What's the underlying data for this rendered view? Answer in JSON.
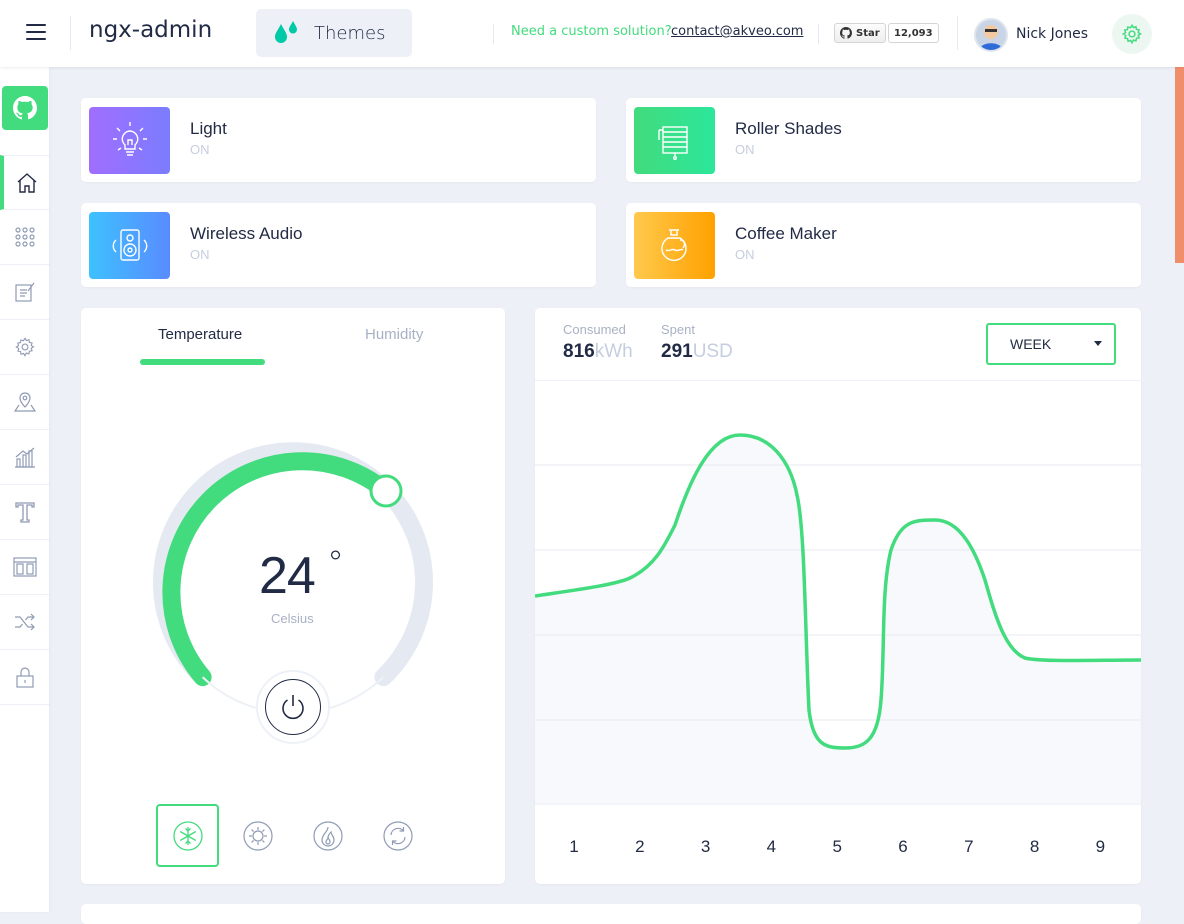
{
  "header": {
    "logo": "ngx-admin",
    "themes_label": "Themes",
    "promo_text": "Need a custom solution?",
    "contact_link": "contact@akveo.com",
    "github_star_label": "Star",
    "github_star_count": "12,093",
    "user_name": "Nick Jones"
  },
  "sidebar": {
    "items": [
      "home-icon",
      "apps-grid-icon",
      "edit-icon",
      "settings-icon",
      "map-icon",
      "bar-chart-icon",
      "text-icon",
      "layout-icon",
      "shuffle-icon",
      "lock-icon"
    ],
    "active": "home-icon"
  },
  "devices": [
    {
      "title": "Light",
      "status": "ON",
      "icon": "lightbulb-icon",
      "gradient": [
        "#a16eff",
        "#7b7cff"
      ]
    },
    {
      "title": "Roller Shades",
      "status": "ON",
      "icon": "roller-shades-icon",
      "gradient": [
        "#42db7d",
        "#2ce69b"
      ]
    },
    {
      "title": "Wireless Audio",
      "status": "ON",
      "icon": "speaker-icon",
      "gradient": [
        "#3ec1ff",
        "#598bff"
      ]
    },
    {
      "title": "Coffee Maker",
      "status": "ON",
      "icon": "coffee-pot-icon",
      "gradient": [
        "#ffc94d",
        "#ffa100"
      ]
    }
  ],
  "thermostat": {
    "tabs": [
      "Temperature",
      "Humidity"
    ],
    "active_tab": "Temperature",
    "value": "24",
    "degree": "°",
    "unit": "Celsius",
    "modes": [
      "snowflake-icon",
      "sun-icon",
      "flame-icon",
      "cycle-icon"
    ],
    "selected_mode": "snowflake-icon"
  },
  "electricity": {
    "consumed_label": "Consumed",
    "consumed_value": "816",
    "consumed_unit": "kWh",
    "spent_label": "Spent",
    "spent_value": "291",
    "spent_unit": "USD",
    "period": "WEEK"
  },
  "chart_data": {
    "type": "line",
    "x": [
      1,
      2,
      3,
      4,
      5,
      6,
      7,
      8,
      9
    ],
    "xlabel": "",
    "ylabel": "",
    "grid": true,
    "line_color": "#42db7d"
  }
}
